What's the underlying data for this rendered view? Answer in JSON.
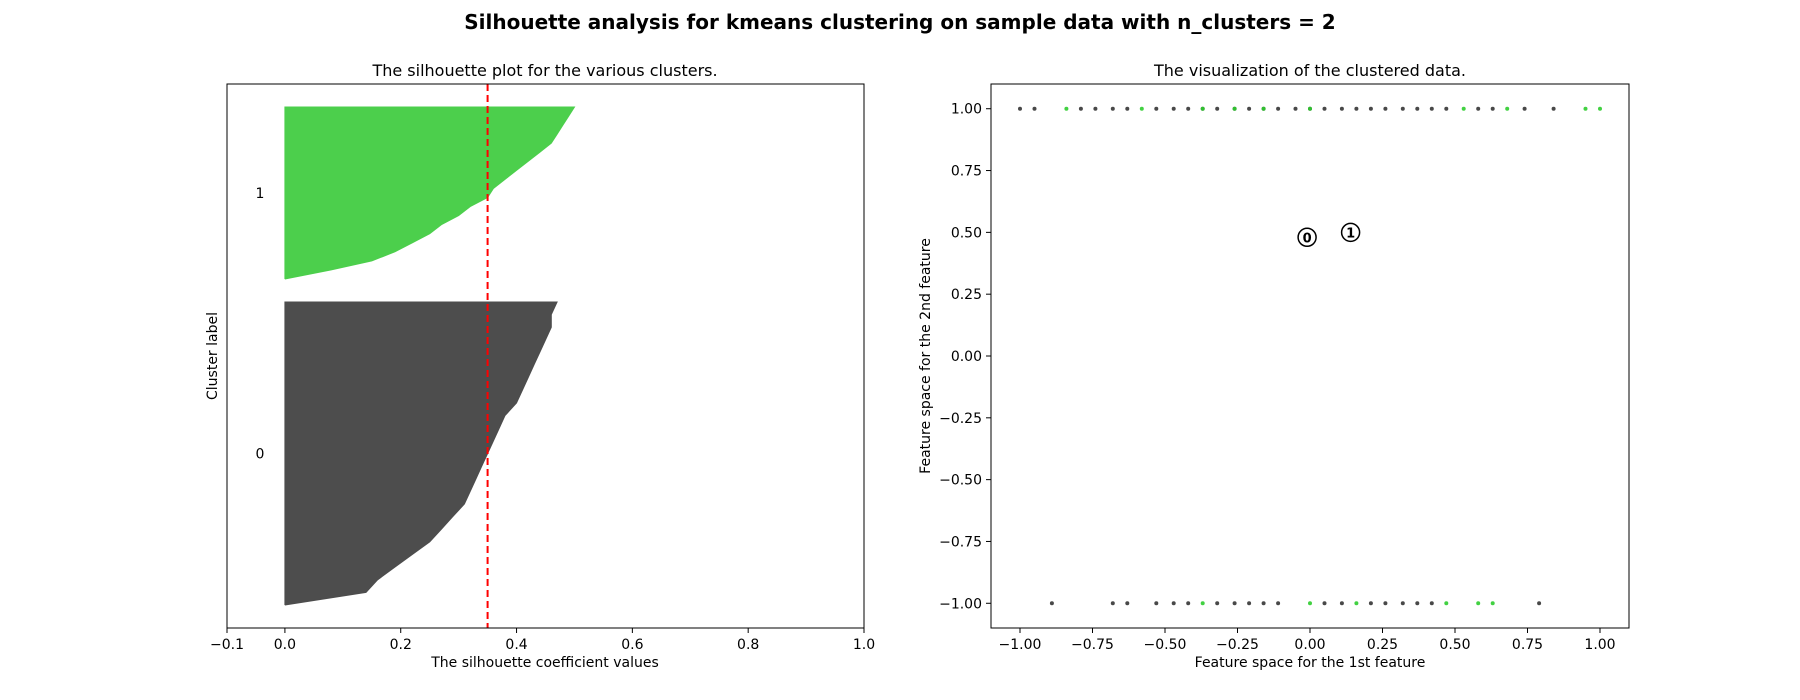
{
  "suptitle": "Silhouette analysis for kmeans clustering on sample data with n_clusters = 2",
  "chart_data": [
    {
      "type": "area",
      "title": "The silhouette plot for the various clusters.",
      "xlabel": "The silhouette coefficient values",
      "ylabel": "Cluster label",
      "xlim": [
        -0.1,
        1.0
      ],
      "xticks": [
        -0.1,
        0.0,
        0.2,
        0.4,
        0.6,
        0.8,
        1.0
      ],
      "xtick_labels": [
        "−0.1",
        "0.0",
        "0.2",
        "0.4",
        "0.6",
        "0.8",
        "1.0"
      ],
      "average_silhouette": 0.35,
      "clusters": [
        {
          "label": "0",
          "color": "#4d4d4d",
          "max_value": 0.47,
          "min_value": 0.0,
          "sorted_values_low_to_high": [
            0.0,
            0.14,
            0.16,
            0.19,
            0.22,
            0.25,
            0.27,
            0.29,
            0.31,
            0.32,
            0.33,
            0.34,
            0.35,
            0.36,
            0.37,
            0.38,
            0.4,
            0.41,
            0.42,
            0.43,
            0.44,
            0.45,
            0.46,
            0.46,
            0.47
          ]
        },
        {
          "label": "1",
          "color": "#4ccf4c",
          "max_value": 0.5,
          "min_value": 0.0,
          "sorted_values_low_to_high": [
            0.0,
            0.08,
            0.15,
            0.19,
            0.22,
            0.25,
            0.27,
            0.3,
            0.32,
            0.35,
            0.36,
            0.38,
            0.4,
            0.42,
            0.44,
            0.46,
            0.47,
            0.48,
            0.49,
            0.5
          ]
        }
      ]
    },
    {
      "type": "scatter",
      "title": "The visualization of the clustered data.",
      "xlabel": "Feature space for the 1st feature",
      "ylabel": "Feature space for the 2nd feature",
      "xlim": [
        -1.1,
        1.1
      ],
      "ylim": [
        -1.1,
        1.1
      ],
      "xticks": [
        -1.0,
        -0.75,
        -0.5,
        -0.25,
        0.0,
        0.25,
        0.5,
        0.75,
        1.0
      ],
      "xtick_labels": [
        "−1.00",
        "−0.75",
        "−0.50",
        "−0.25",
        "0.00",
        "0.25",
        "0.50",
        "0.75",
        "1.00"
      ],
      "yticks": [
        -1.0,
        -0.75,
        -0.5,
        -0.25,
        0.0,
        0.25,
        0.5,
        0.75,
        1.0
      ],
      "ytick_labels": [
        "−1.00",
        "−0.75",
        "−0.50",
        "−0.25",
        "0.00",
        "0.25",
        "0.50",
        "0.75",
        "1.00"
      ],
      "points_top": {
        "y": 1.0,
        "x_dark": [
          -1.0,
          -0.95,
          -0.79,
          -0.74,
          -0.68,
          -0.63,
          -0.53,
          -0.47,
          -0.42,
          -0.37,
          -0.32,
          -0.26,
          -0.21,
          -0.16,
          -0.11,
          -0.05,
          0.0,
          0.05,
          0.11,
          0.16,
          0.21,
          0.26,
          0.32,
          0.37,
          0.42,
          0.47,
          0.58,
          0.63,
          0.74,
          0.84
        ],
        "x_green": [
          -0.84,
          -0.58,
          -0.37,
          -0.26,
          -0.16,
          0.0,
          0.53,
          0.68,
          0.95,
          1.0
        ]
      },
      "points_bottom": {
        "y": -1.0,
        "x_dark": [
          -0.89,
          -0.68,
          -0.63,
          -0.53,
          -0.47,
          -0.42,
          -0.32,
          -0.26,
          -0.21,
          -0.16,
          -0.11,
          0.05,
          0.11,
          0.21,
          0.26,
          0.32,
          0.37,
          0.42,
          0.79
        ],
        "x_green": [
          -0.37,
          0.0,
          0.16,
          0.47,
          0.58,
          0.63
        ]
      },
      "centers": [
        {
          "label": "0",
          "x": -0.01,
          "y": 0.48
        },
        {
          "label": "1",
          "x": 0.14,
          "y": 0.5
        }
      ]
    }
  ]
}
